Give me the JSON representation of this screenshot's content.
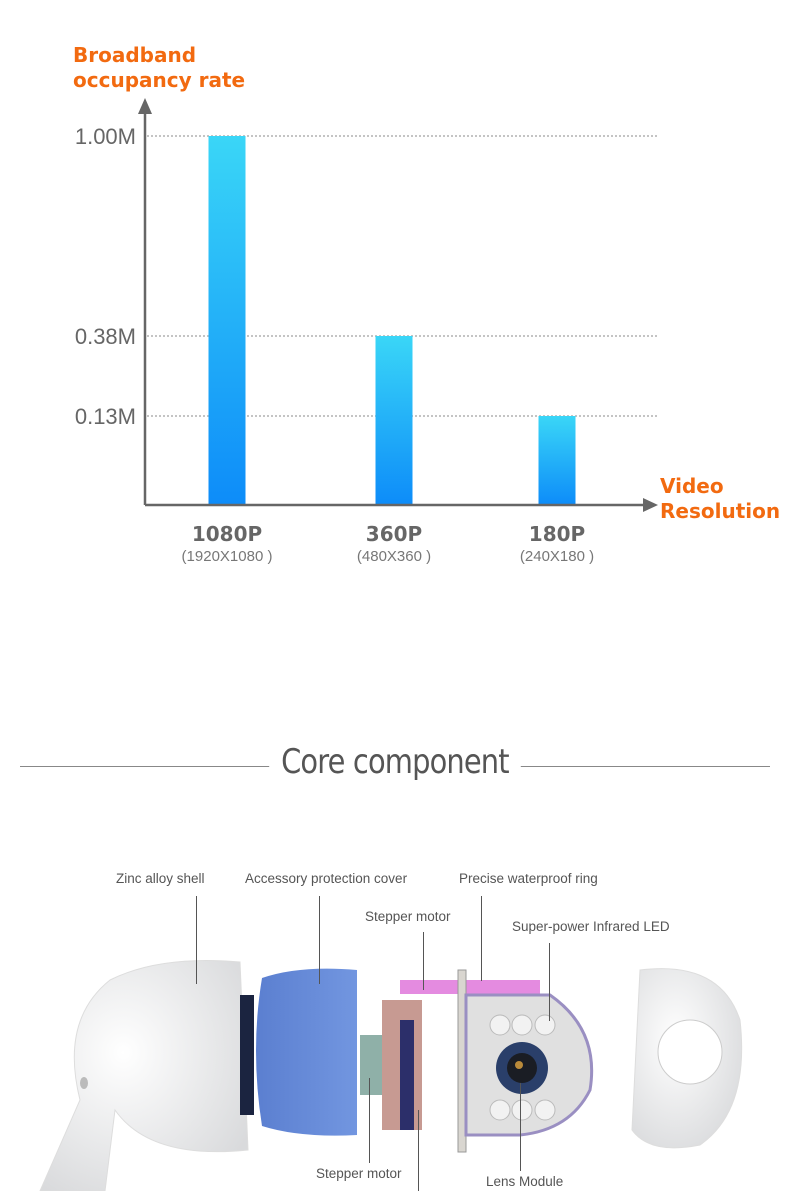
{
  "chart_data": {
    "type": "bar",
    "ylabel": "Broadband occupancy rate",
    "ylabel_lines": [
      "Broadband",
      "occupancy rate"
    ],
    "xlabel": "Video Resolution",
    "xlabel_lines": [
      "Video",
      "Resolution"
    ],
    "categories": [
      "1080P",
      "360P",
      "180P"
    ],
    "category_subtitles": [
      "(1920X1080 )",
      "(480X360 )",
      "(240X180 )"
    ],
    "values": [
      1.0,
      0.38,
      0.13
    ],
    "unit": "M",
    "y_ticks": [
      "1.00M",
      "0.38M",
      "0.13M"
    ],
    "y_tick_values": [
      1.0,
      0.38,
      0.13
    ],
    "grid": "dotted horizontal at tick values",
    "bar_gradient": [
      "#3ad6f7",
      "#0d8cf9"
    ],
    "label_color": "#f26a10"
  },
  "section": {
    "title": "Core component"
  },
  "diagram": {
    "labels": {
      "zinc": "Zinc alloy shell",
      "cover": "Accessory protection cover",
      "ring": "Precise waterproof ring",
      "stepper_top": "Stepper motor",
      "led": "Super-power Infrared LED",
      "stepper_bottom": "Stepper motor",
      "lens": "Lens Module"
    }
  }
}
